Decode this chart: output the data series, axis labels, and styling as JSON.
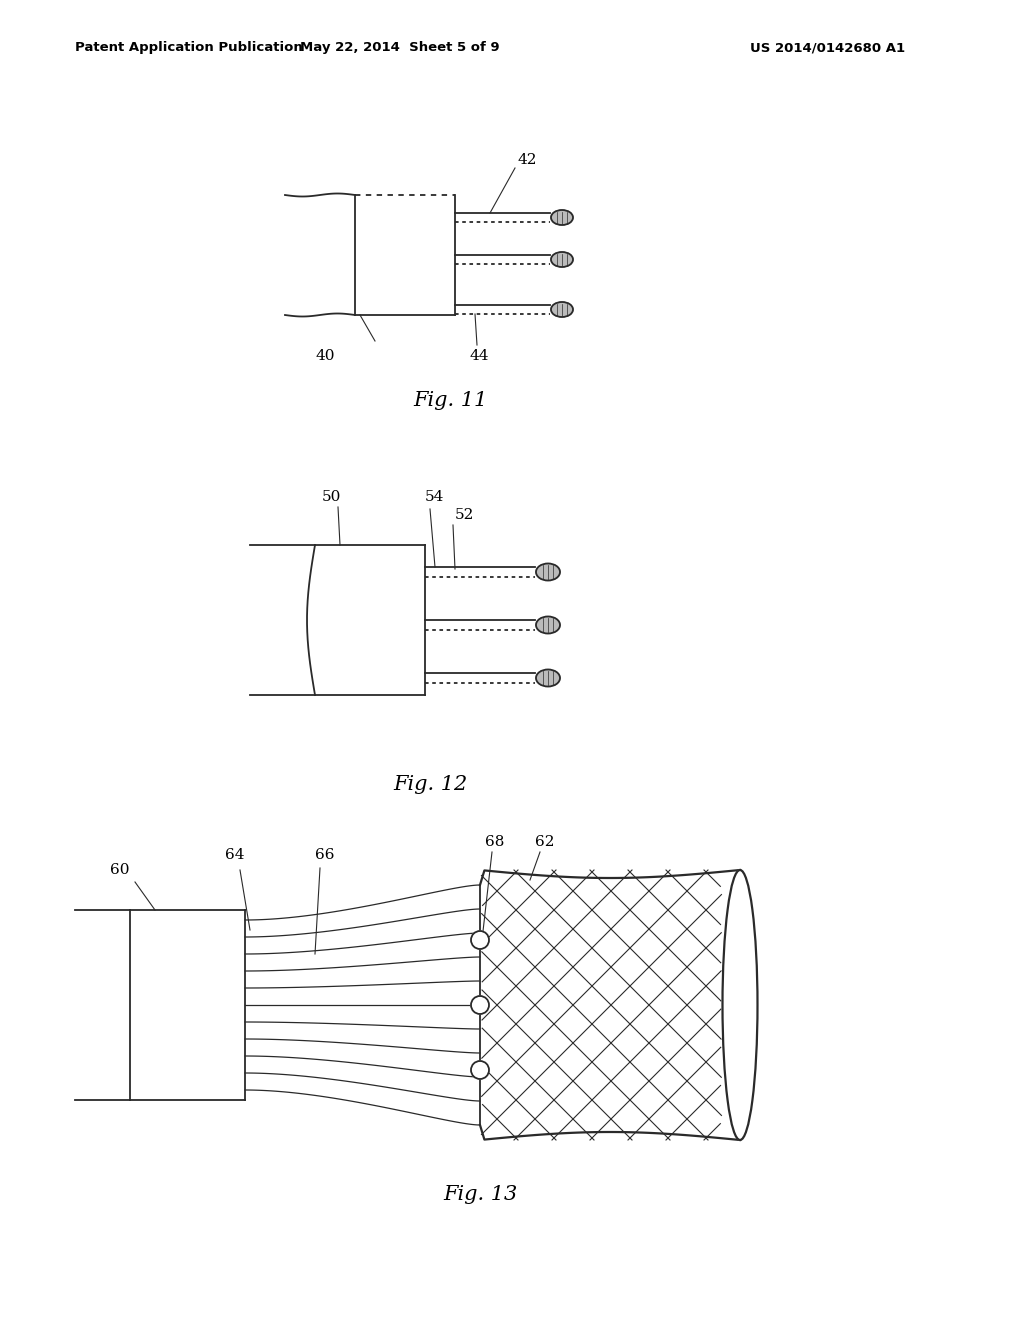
{
  "bg_color": "#ffffff",
  "line_color": "#2a2a2a",
  "header_left": "Patent Application Publication",
  "header_mid": "May 22, 2014  Sheet 5 of 9",
  "header_right": "US 2014/0142680 A1",
  "fig11_label": "Fig. 11",
  "fig12_label": "Fig. 12",
  "fig13_label": "Fig. 13",
  "label_40": "40",
  "label_42": "42",
  "label_44": "44",
  "label_50": "50",
  "label_52": "52",
  "label_54": "54",
  "label_60": "60",
  "label_62": "62",
  "label_64": "64",
  "label_66": "66",
  "label_68": "68"
}
